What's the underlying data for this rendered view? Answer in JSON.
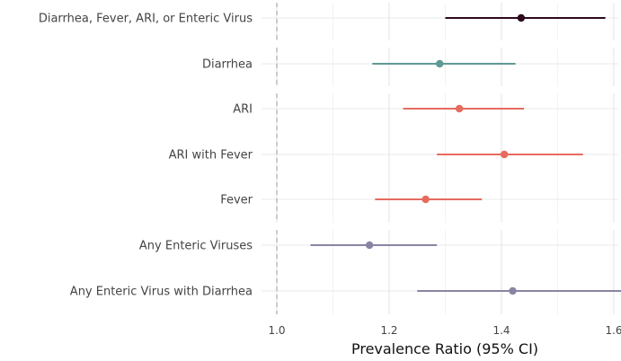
{
  "chart_data": {
    "type": "forest",
    "xlabel": "Prevalence Ratio (95% CI)",
    "xlim": [
      0.98,
      1.64
    ],
    "xticks": [
      1.0,
      1.2,
      1.4,
      1.6
    ],
    "xtick_labels": [
      "1.0",
      "1.2",
      "1.4",
      "1.6"
    ],
    "reference_line": 1.0,
    "grid": true,
    "rows": [
      {
        "label": "Diarrhea, Fever, ARI, or Enteric Virus",
        "estimate": 1.435,
        "lower": 1.3,
        "upper": 1.585,
        "color": "#2d0a1e",
        "panel": 1
      },
      {
        "label": "Diarrhea",
        "estimate": 1.29,
        "lower": 1.17,
        "upper": 1.425,
        "color": "#5f9a94",
        "panel": 2
      },
      {
        "label": "ARI",
        "estimate": 1.325,
        "lower": 1.225,
        "upper": 1.44,
        "color": "#e66b5f",
        "panel": 3
      },
      {
        "label": "ARI with Fever",
        "estimate": 1.405,
        "lower": 1.285,
        "upper": 1.545,
        "color": "#e66b5f",
        "panel": 3
      },
      {
        "label": "Fever",
        "estimate": 1.265,
        "lower": 1.175,
        "upper": 1.365,
        "color": "#e66b5f",
        "panel": 3
      },
      {
        "label": "Any Enteric Viruses",
        "estimate": 1.165,
        "lower": 1.06,
        "upper": 1.285,
        "color": "#8a84a4",
        "panel": 4
      },
      {
        "label": "Any Enteric Virus with Diarrhea",
        "estimate": 1.42,
        "lower": 1.25,
        "upper": 1.615,
        "color": "#8a84a4",
        "panel": 4
      }
    ]
  }
}
